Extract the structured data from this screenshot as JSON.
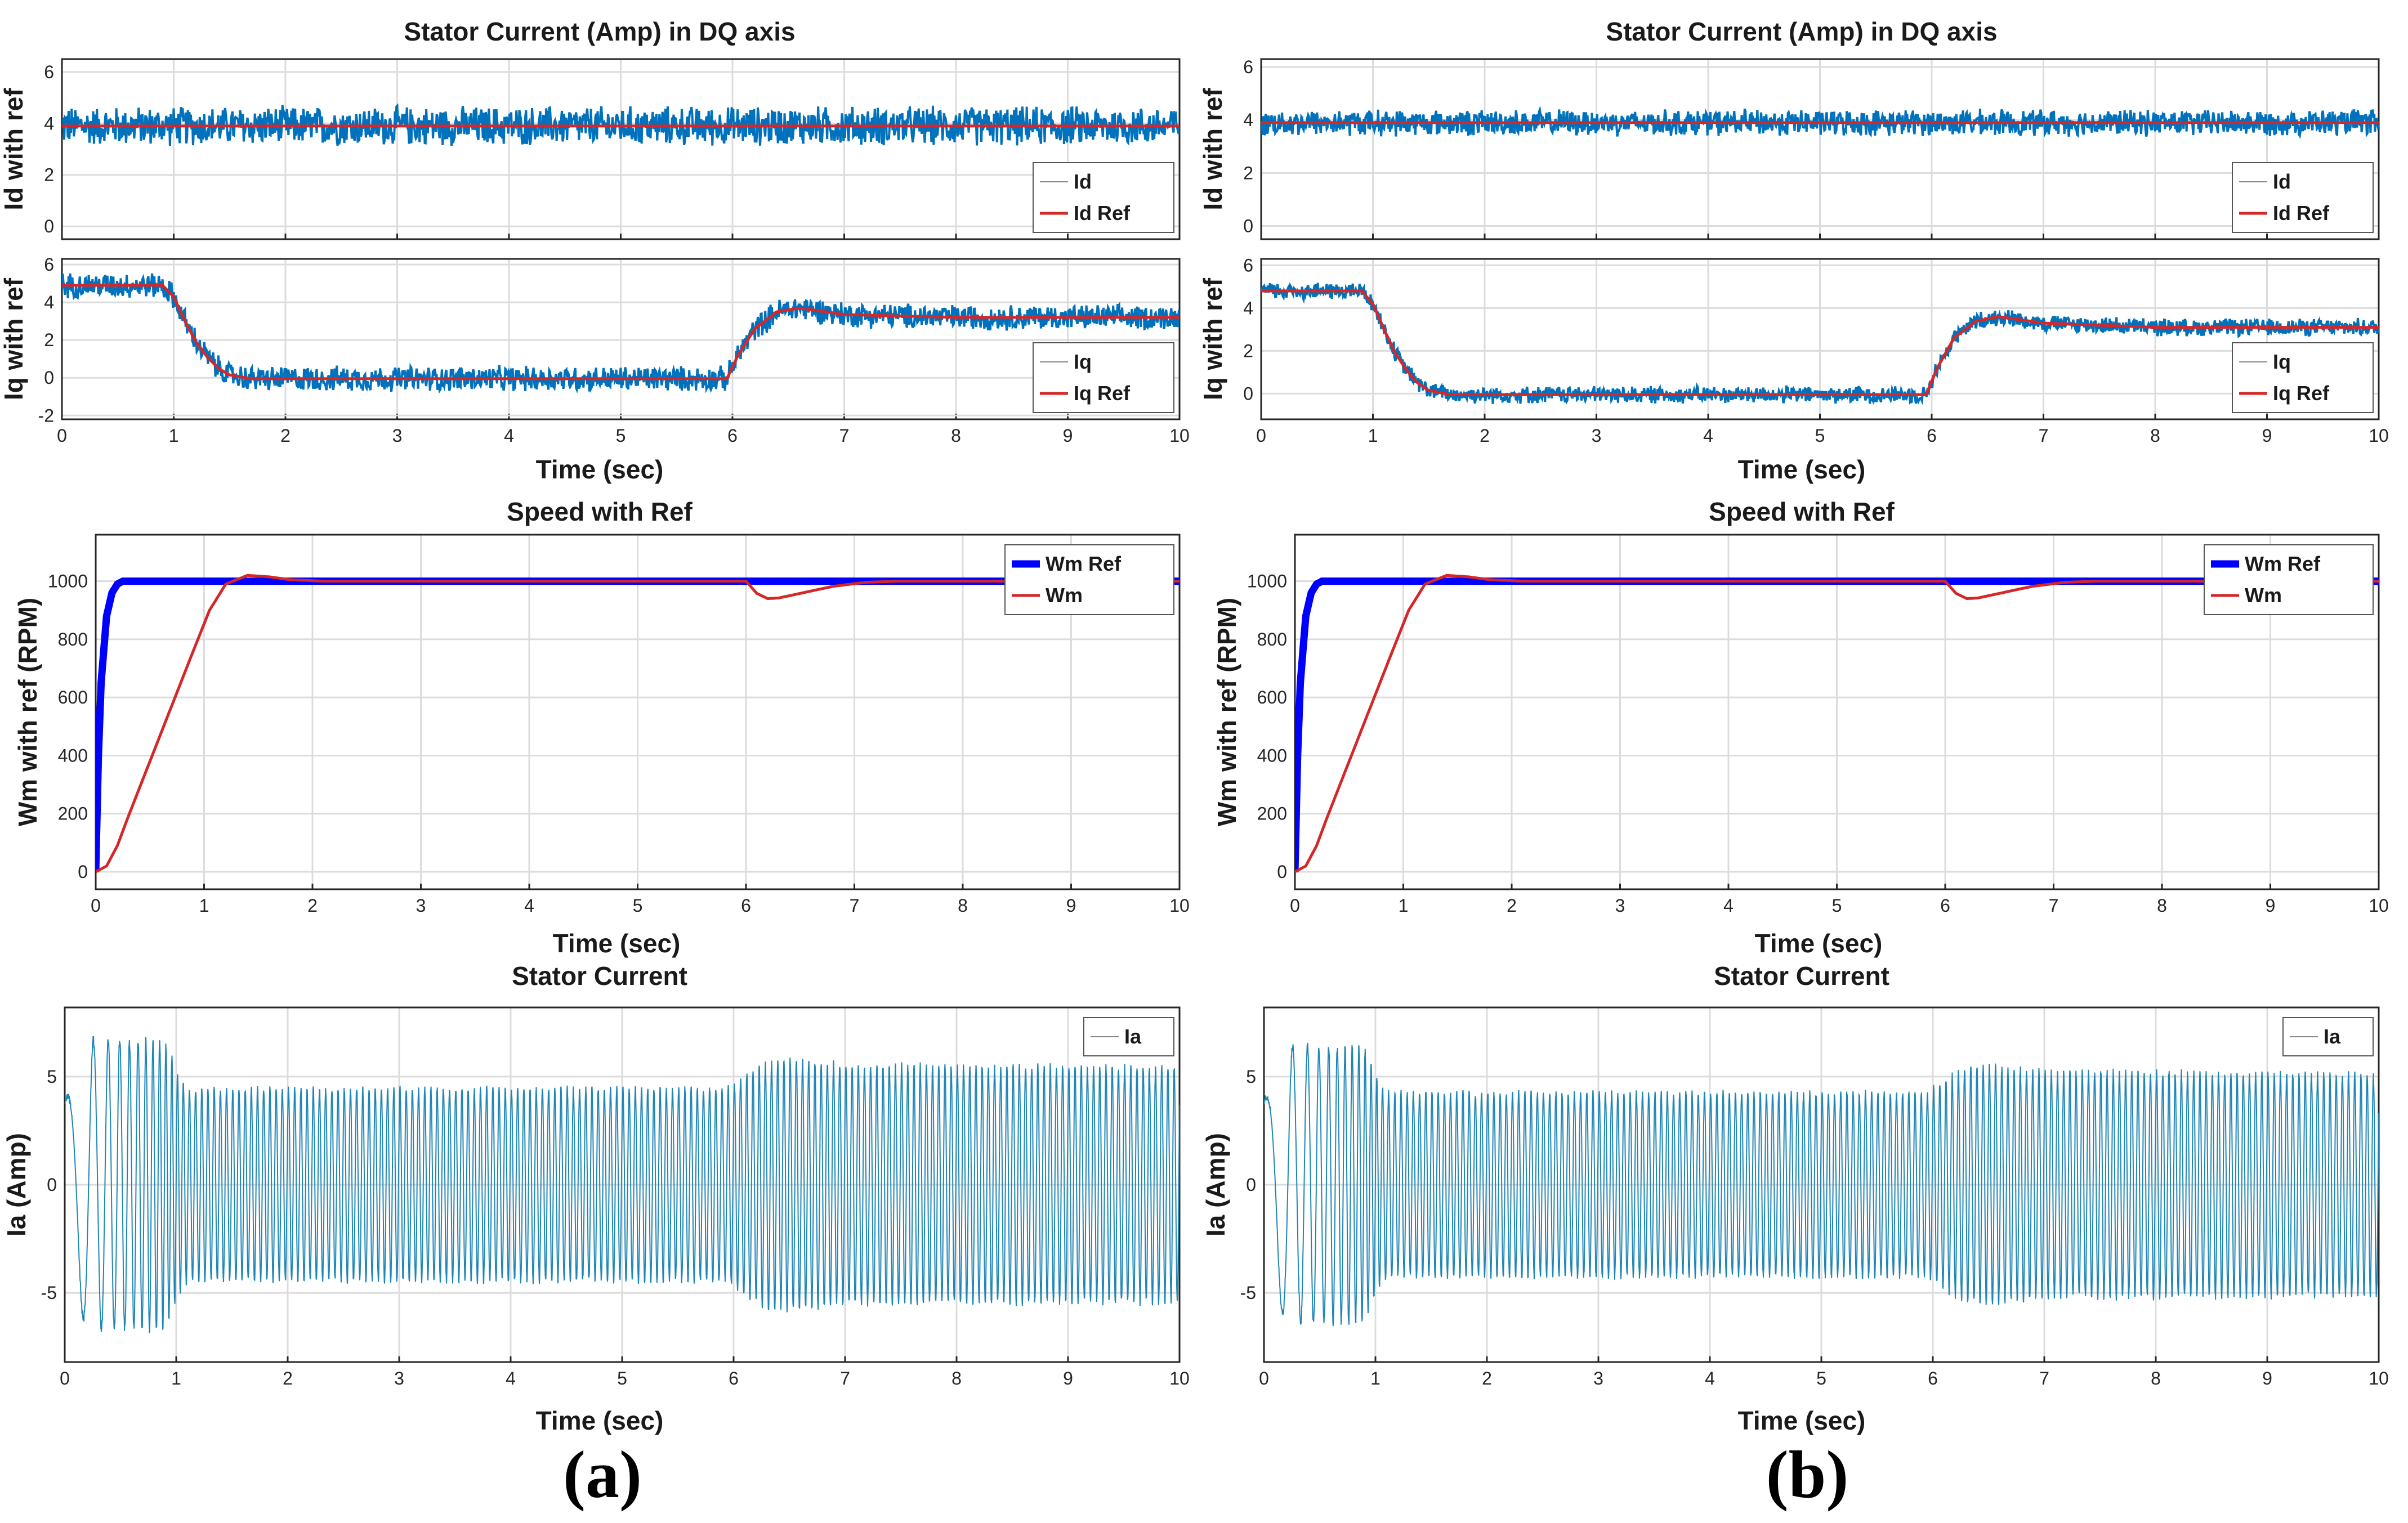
{
  "colors": {
    "noisy_signal": "#0072bd",
    "reference": "#d62728",
    "speed_ref": "#0000ff",
    "stator": "#1f86b5"
  },
  "panel_labels": [
    "(a)",
    "(b)"
  ],
  "chart_data": [
    {
      "id": "a-dq",
      "panel": "a",
      "type": "line",
      "title": "Stator Current (Amp) in DQ axis",
      "xlabel": "Time (sec)",
      "subplots": [
        {
          "id": "a-id",
          "ylabel": "Id with ref",
          "xlim": [
            0,
            10
          ],
          "ylim": [
            -0.5,
            6.5
          ],
          "yticks": [
            0,
            2,
            4,
            6
          ],
          "xticks": [
            0,
            1,
            2,
            3,
            4,
            5,
            6,
            7,
            8,
            9,
            10
          ],
          "show_xticklabels": false,
          "legend": [
            "Id",
            "Id Ref"
          ],
          "series": [
            {
              "name": "Id",
              "style": "noise",
              "band": 0.85,
              "x": [
                0,
                10
              ],
              "y": [
                3.9,
                3.9
              ]
            },
            {
              "name": "Id Ref",
              "style": "ref",
              "x": [
                0,
                10
              ],
              "y": [
                3.9,
                3.9
              ]
            }
          ]
        },
        {
          "id": "a-iq",
          "ylabel": "Iq with ref",
          "xlim": [
            0,
            10
          ],
          "ylim": [
            -2.2,
            6.3
          ],
          "yticks": [
            -2,
            0,
            2,
            4,
            6
          ],
          "xticks": [
            0,
            1,
            2,
            3,
            4,
            5,
            6,
            7,
            8,
            9,
            10
          ],
          "show_xticklabels": true,
          "legend": [
            "Iq",
            "Iq Ref"
          ],
          "series": [
            {
              "name": "Iq",
              "style": "noise",
              "band": 0.75,
              "x": [
                0,
                0.9,
                1.0,
                1.1,
                1.2,
                1.3,
                1.4,
                1.5,
                1.7,
                2.0,
                3.0,
                5.95,
                6.05,
                6.2,
                6.4,
                6.6,
                7.0,
                8.0,
                10
              ],
              "y": [
                4.9,
                4.9,
                4.3,
                3.0,
                1.9,
                1.1,
                0.5,
                0.15,
                -0.05,
                -0.05,
                -0.05,
                -0.05,
                1.2,
                2.6,
                3.5,
                3.7,
                3.35,
                3.2,
                3.2
              ]
            },
            {
              "name": "Iq Ref",
              "style": "ref",
              "x": [
                0,
                0.9,
                1.0,
                1.1,
                1.2,
                1.3,
                1.4,
                1.5,
                1.7,
                2.0,
                3.0,
                5.95,
                6.05,
                6.2,
                6.4,
                6.6,
                7.0,
                8.0,
                10
              ],
              "y": [
                4.9,
                4.9,
                4.3,
                3.0,
                1.9,
                1.1,
                0.5,
                0.15,
                -0.05,
                -0.05,
                -0.05,
                -0.05,
                1.2,
                2.6,
                3.5,
                3.7,
                3.35,
                3.2,
                3.2
              ]
            }
          ]
        }
      ]
    },
    {
      "id": "a-speed",
      "panel": "a",
      "type": "line",
      "title": "Speed with Ref",
      "xlabel": "Time (sec)",
      "ylabel": "Wm with ref (RPM)",
      "xlim": [
        0,
        10
      ],
      "ylim": [
        -60,
        1160
      ],
      "yticks": [
        0,
        200,
        400,
        600,
        800,
        1000
      ],
      "xticks": [
        0,
        1,
        2,
        3,
        4,
        5,
        6,
        7,
        8,
        9,
        10
      ],
      "legend": [
        "Wm Ref",
        "Wm"
      ],
      "series": [
        {
          "name": "Wm Ref",
          "style": "thick",
          "x": [
            0,
            0.02,
            0.05,
            0.1,
            0.15,
            0.2,
            0.25,
            0.3,
            0.4,
            0.5,
            10
          ],
          "y": [
            0,
            350,
            650,
            880,
            960,
            990,
            1000,
            1000,
            1000,
            1000,
            1000
          ]
        },
        {
          "name": "Wm",
          "style": "ref",
          "x": [
            0,
            0.1,
            0.2,
            0.3,
            0.5,
            0.7,
            0.9,
            1.05,
            1.2,
            1.4,
            1.6,
            1.8,
            2.1,
            2.5,
            6.0,
            6.1,
            6.2,
            6.3,
            6.5,
            6.8,
            7.1,
            7.4,
            10
          ],
          "y": [
            0,
            20,
            90,
            190,
            380,
            570,
            760,
            900,
            990,
            1020,
            1015,
            1005,
            1000,
            1000,
            1000,
            958,
            940,
            942,
            958,
            982,
            996,
            1000,
            1000
          ]
        }
      ]
    },
    {
      "id": "a-ia",
      "panel": "a",
      "type": "line",
      "title": "Stator Current",
      "xlabel": "Time (sec)",
      "ylabel": "Ia (Amp)",
      "xlim": [
        0,
        10
      ],
      "ylim": [
        -8.2,
        8.2
      ],
      "yticks": [
        -5,
        0,
        5
      ],
      "xticks": [
        0,
        1,
        2,
        3,
        4,
        5,
        6,
        7,
        8,
        9,
        10
      ],
      "legend": [
        "Ia"
      ],
      "series": [
        {
          "name": "Ia",
          "style": "oscillation",
          "envelope_x": [
            0,
            0.1,
            0.2,
            0.3,
            0.9,
            1.0,
            1.1,
            5.95,
            6.1,
            6.3,
            6.5,
            7.0,
            10
          ],
          "envelope_y": [
            4.0,
            5.5,
            6.9,
            6.9,
            6.9,
            5.5,
            4.6,
            4.6,
            5.3,
            5.9,
            6.0,
            5.7,
            5.6
          ],
          "freq_x": [
            0,
            1,
            1.1,
            6,
            6.2,
            7,
            10
          ],
          "freq_y": [
            1.5,
            20,
            18,
            18,
            18,
            18,
            18
          ]
        }
      ]
    },
    {
      "id": "b-dq",
      "panel": "b",
      "type": "line",
      "title": "Stator Current (Amp) in DQ axis",
      "xlabel": "Time (sec)",
      "subplots": [
        {
          "id": "b-id",
          "ylabel": "Id with ref",
          "xlim": [
            0,
            10
          ],
          "ylim": [
            -0.5,
            6.3
          ],
          "yticks": [
            0,
            2,
            4,
            6
          ],
          "xticks": [
            0,
            1,
            2,
            3,
            4,
            5,
            6,
            7,
            8,
            9,
            10
          ],
          "show_xticklabels": false,
          "legend": [
            "Id",
            "Id Ref"
          ],
          "series": [
            {
              "name": "Id",
              "style": "noise",
              "band": 0.55,
              "x": [
                0,
                10
              ],
              "y": [
                3.9,
                3.9
              ]
            },
            {
              "name": "Id Ref",
              "style": "ref",
              "x": [
                0,
                10
              ],
              "y": [
                3.9,
                3.9
              ]
            }
          ]
        },
        {
          "id": "b-iq",
          "ylabel": "Iq with ref",
          "xlim": [
            0,
            10
          ],
          "ylim": [
            -1.2,
            6.3
          ],
          "yticks": [
            0,
            2,
            4,
            6
          ],
          "xticks": [
            0,
            1,
            2,
            3,
            4,
            5,
            6,
            7,
            8,
            9,
            10
          ],
          "show_xticklabels": true,
          "legend": [
            "Iq",
            "Iq Ref"
          ],
          "series": [
            {
              "name": "Iq",
              "style": "noise",
              "band": 0.45,
              "x": [
                0,
                0.9,
                1.0,
                1.1,
                1.2,
                1.3,
                1.4,
                1.5,
                1.7,
                2.0,
                3.0,
                5.95,
                6.05,
                6.2,
                6.4,
                6.6,
                7.0,
                8.0,
                10
              ],
              "y": [
                4.8,
                4.8,
                4.2,
                3.0,
                1.9,
                1.1,
                0.5,
                0.15,
                -0.05,
                -0.05,
                -0.05,
                -0.05,
                1.2,
                2.6,
                3.4,
                3.6,
                3.3,
                3.1,
                3.1
              ]
            },
            {
              "name": "Iq Ref",
              "style": "ref",
              "x": [
                0,
                0.9,
                1.0,
                1.1,
                1.2,
                1.3,
                1.4,
                1.5,
                1.7,
                2.0,
                3.0,
                5.95,
                6.05,
                6.2,
                6.4,
                6.6,
                7.0,
                8.0,
                10
              ],
              "y": [
                4.8,
                4.8,
                4.2,
                3.0,
                1.9,
                1.1,
                0.5,
                0.15,
                -0.05,
                -0.05,
                -0.05,
                -0.05,
                1.2,
                2.6,
                3.4,
                3.6,
                3.3,
                3.1,
                3.1
              ]
            }
          ]
        }
      ]
    },
    {
      "id": "b-speed",
      "panel": "b",
      "type": "line",
      "title": "Speed with Ref",
      "xlabel": "Time (sec)",
      "ylabel": "Wm with ref (RPM)",
      "xlim": [
        0,
        10
      ],
      "ylim": [
        -60,
        1160
      ],
      "yticks": [
        0,
        200,
        400,
        600,
        800,
        1000
      ],
      "xticks": [
        0,
        1,
        2,
        3,
        4,
        5,
        6,
        7,
        8,
        9,
        10
      ],
      "legend": [
        "Wm Ref",
        "Wm"
      ],
      "series": [
        {
          "name": "Wm Ref",
          "style": "thick",
          "x": [
            0,
            0.02,
            0.05,
            0.1,
            0.15,
            0.2,
            0.25,
            0.3,
            0.4,
            0.5,
            10
          ],
          "y": [
            0,
            350,
            650,
            880,
            960,
            990,
            1000,
            1000,
            1000,
            1000,
            1000
          ]
        },
        {
          "name": "Wm",
          "style": "ref",
          "x": [
            0,
            0.1,
            0.2,
            0.3,
            0.5,
            0.7,
            0.9,
            1.05,
            1.2,
            1.4,
            1.6,
            1.8,
            2.1,
            2.5,
            6.0,
            6.1,
            6.2,
            6.3,
            6.5,
            6.8,
            7.1,
            7.4,
            10
          ],
          "y": [
            0,
            20,
            90,
            190,
            380,
            570,
            760,
            900,
            990,
            1020,
            1015,
            1005,
            1000,
            1000,
            1000,
            958,
            940,
            942,
            958,
            982,
            996,
            1000,
            1000
          ]
        }
      ]
    },
    {
      "id": "b-ia",
      "panel": "b",
      "type": "line",
      "title": "Stator Current",
      "xlabel": "Time (sec)",
      "ylabel": "Ia (Amp)",
      "xlim": [
        0,
        10
      ],
      "ylim": [
        -8.2,
        8.2
      ],
      "yticks": [
        -5,
        0,
        5
      ],
      "xticks": [
        0,
        1,
        2,
        3,
        4,
        5,
        6,
        7,
        8,
        9,
        10
      ],
      "legend": [
        "Ia"
      ],
      "series": [
        {
          "name": "Ia",
          "style": "oscillation",
          "envelope_x": [
            0,
            0.1,
            0.2,
            0.3,
            0.9,
            1.0,
            1.1,
            5.95,
            6.1,
            6.3,
            6.5,
            7.0,
            10
          ],
          "envelope_y": [
            4.0,
            5.5,
            6.6,
            6.6,
            6.6,
            5.2,
            4.4,
            4.4,
            5.0,
            5.6,
            5.7,
            5.4,
            5.3
          ],
          "freq_x": [
            0,
            1,
            1.1,
            6,
            6.2,
            7,
            10
          ],
          "freq_y": [
            1.5,
            20,
            18,
            18,
            18,
            18,
            18
          ]
        }
      ]
    }
  ]
}
